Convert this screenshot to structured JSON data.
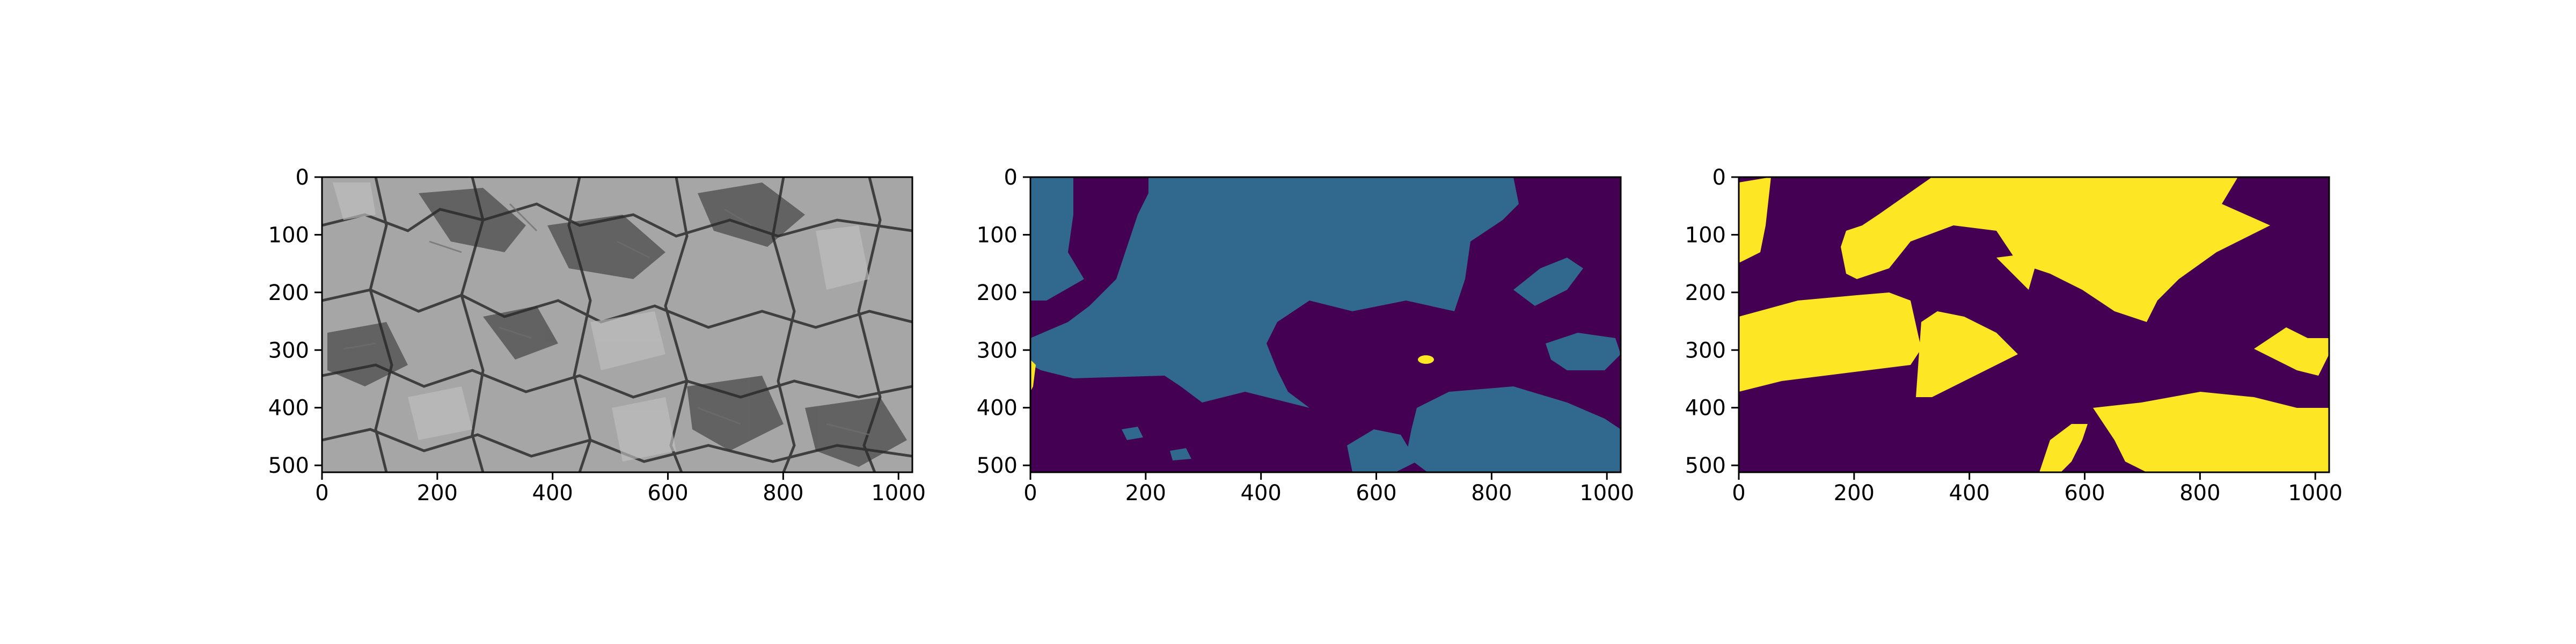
{
  "chart_data": [
    {
      "type": "heatmap",
      "content": "grayscale micrograph",
      "xlim": [
        0,
        1024
      ],
      "ylim": [
        512,
        0
      ],
      "xticks": [
        0,
        200,
        400,
        600,
        800,
        1000
      ],
      "yticks": [
        0,
        100,
        200,
        300,
        400,
        500
      ],
      "colors": {
        "background": "#a6a6a6",
        "boundary": "#3f3f3f",
        "dark": "#2a2a2a",
        "mid": "#6e6e6e",
        "light": "#c0c0c0"
      }
    },
    {
      "type": "heatmap",
      "content": "label map",
      "xlim": [
        0,
        1024
      ],
      "ylim": [
        512,
        0
      ],
      "xticks": [
        0,
        200,
        400,
        600,
        800,
        1000
      ],
      "yticks": [
        0,
        100,
        200,
        300,
        400,
        500
      ],
      "colors": {
        "class_0": "#440154",
        "class_1": "#31688e",
        "class_2": "#fde725"
      }
    },
    {
      "type": "heatmap",
      "content": "binary mask",
      "xlim": [
        0,
        1024
      ],
      "ylim": [
        512,
        0
      ],
      "xticks": [
        0,
        200,
        400,
        600,
        800,
        1000
      ],
      "yticks": [
        0,
        100,
        200,
        300,
        400,
        500
      ],
      "colors": {
        "class_0": "#440154",
        "class_1": "#fde725"
      }
    }
  ]
}
